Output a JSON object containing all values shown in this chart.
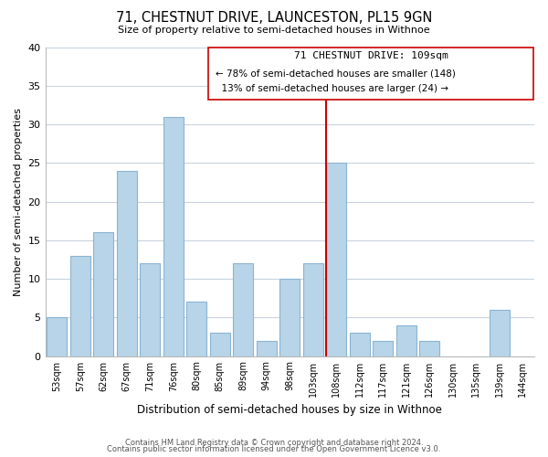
{
  "title": "71, CHESTNUT DRIVE, LAUNCESTON, PL15 9GN",
  "subtitle": "Size of property relative to semi-detached houses in Withnoe",
  "xlabel": "Distribution of semi-detached houses by size in Withnoe",
  "ylabel": "Number of semi-detached properties",
  "bar_labels": [
    "53sqm",
    "57sqm",
    "62sqm",
    "67sqm",
    "71sqm",
    "76sqm",
    "80sqm",
    "85sqm",
    "89sqm",
    "94sqm",
    "98sqm",
    "103sqm",
    "108sqm",
    "112sqm",
    "117sqm",
    "121sqm",
    "126sqm",
    "130sqm",
    "135sqm",
    "139sqm",
    "144sqm"
  ],
  "bar_values": [
    5,
    13,
    16,
    24,
    12,
    31,
    7,
    3,
    12,
    2,
    10,
    12,
    25,
    3,
    2,
    4,
    2,
    0,
    0,
    6,
    0
  ],
  "bar_color": "#b8d4e8",
  "bar_edge_color": "#8ab4d4",
  "property_line_index": 12,
  "pct_smaller": 78,
  "n_smaller": 148,
  "pct_larger": 13,
  "n_larger": 24,
  "ylim": [
    0,
    40
  ],
  "yticks": [
    0,
    5,
    10,
    15,
    20,
    25,
    30,
    35,
    40
  ],
  "line_color": "#cc0000",
  "footer1": "Contains HM Land Registry data © Crown copyright and database right 2024.",
  "footer2": "Contains public sector information licensed under the Open Government Licence v3.0.",
  "background_color": "#ffffff",
  "grid_color": "#c8d4e0"
}
